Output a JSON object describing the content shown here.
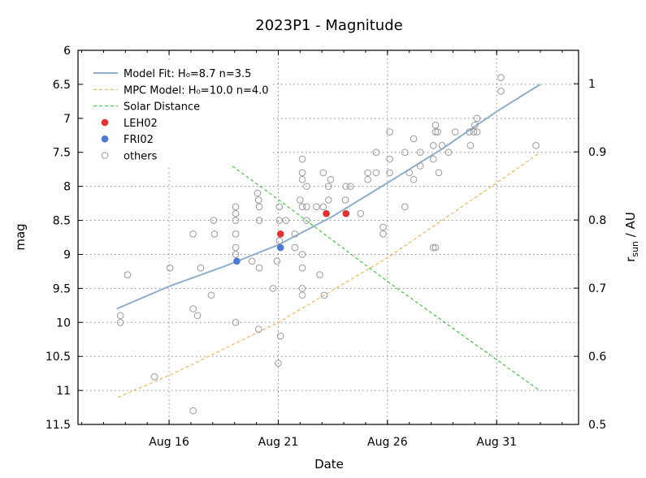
{
  "chart_data": {
    "type": "scatter",
    "title": "2023P1 - Magnitude",
    "xlabel": "Date",
    "ylabel": "mag",
    "ylabel_right": {
      "base": "r",
      "sub": "sun",
      "rest": " / AU"
    },
    "x_unit": "day of August 2023",
    "xlim": [
      11.83,
      34.75
    ],
    "ylim": [
      11.5,
      6
    ],
    "y_inverted": true,
    "ylim_right": [
      0.5,
      1.049
    ],
    "x_ticks": [
      {
        "value": 16,
        "label": "Aug 16"
      },
      {
        "value": 21,
        "label": "Aug 21"
      },
      {
        "value": 26,
        "label": "Aug 26"
      },
      {
        "value": 31,
        "label": "Aug 31"
      }
    ],
    "y_ticks": [
      "6",
      "6.5",
      "7",
      "7.5",
      "8",
      "8.5",
      "9",
      "9.5",
      "10",
      "10.5",
      "11",
      "11.5"
    ],
    "y_ticks_right": [
      "0.5",
      "0.6",
      "0.7",
      "0.8",
      "0.9",
      "1"
    ],
    "grid": true,
    "legend_placement": "top-left",
    "legend": [
      {
        "label": "Model Fit: H₀=8.7 n=3.5",
        "style": "line",
        "color": "#8eaecb"
      },
      {
        "label": "MPC Model: H₀=10.0 n=4.0",
        "style": "dashed",
        "color": "#e8a93a"
      },
      {
        "label": "Solar Distance",
        "style": "dashed",
        "color": "#22bb22"
      },
      {
        "label": "LEH02",
        "style": "dot",
        "color": "#e03030"
      },
      {
        "label": "FRI02",
        "style": "dot",
        "color": "#4c7bd6"
      },
      {
        "label": "others",
        "style": "circle",
        "color": "#999999"
      }
    ],
    "series": [
      {
        "name": "Model Fit: H₀=8.7 n=3.5",
        "kind": "line",
        "axis": "left",
        "points": [
          [
            13.6,
            9.8
          ],
          [
            16,
            9.47
          ],
          [
            18.5,
            9.18
          ],
          [
            21,
            8.86
          ],
          [
            23.5,
            8.44
          ],
          [
            26,
            7.95
          ],
          [
            28.5,
            7.45
          ],
          [
            31,
            6.9
          ],
          [
            33,
            6.5
          ]
        ]
      },
      {
        "name": "MPC Model: H₀=10.0 n=4.0",
        "kind": "dashed",
        "axis": "left",
        "points": [
          [
            13.66,
            11.1
          ],
          [
            16,
            10.78
          ],
          [
            21,
            10.0
          ],
          [
            26,
            9.05
          ],
          [
            31,
            7.95
          ],
          [
            33,
            7.5
          ]
        ]
      },
      {
        "name": "Solar Distance",
        "kind": "dashed",
        "axis": "right",
        "points": [
          [
            16.37,
            0.938
          ],
          [
            21,
            0.83
          ],
          [
            26,
            0.71
          ],
          [
            31,
            0.595
          ],
          [
            33,
            0.549
          ]
        ]
      },
      {
        "name": "LEH02",
        "kind": "dot",
        "axis": "left",
        "points": [
          [
            21.1,
            8.7
          ],
          [
            23.2,
            8.4
          ],
          [
            24.1,
            8.4
          ]
        ]
      },
      {
        "name": "FRI02",
        "kind": "dot",
        "axis": "left",
        "points": [
          [
            19.1,
            9.1
          ],
          [
            21.1,
            8.9
          ]
        ]
      },
      {
        "name": "others",
        "kind": "circle",
        "axis": "left",
        "points": [
          [
            14.1,
            9.3
          ],
          [
            13.77,
            9.9
          ],
          [
            13.77,
            10.0
          ],
          [
            15.33,
            10.8
          ],
          [
            16.04,
            9.2
          ],
          [
            17.1,
            8.7
          ],
          [
            17.1,
            9.8
          ],
          [
            17.3,
            9.9
          ],
          [
            17.1,
            11.3
          ],
          [
            17.45,
            9.2
          ],
          [
            17.93,
            9.6
          ],
          [
            18.04,
            8.5
          ],
          [
            18.08,
            8.7
          ],
          [
            19.05,
            8.3
          ],
          [
            19.05,
            8.4
          ],
          [
            19.05,
            8.5
          ],
          [
            19.05,
            8.7
          ],
          [
            19.05,
            8.9
          ],
          [
            19.05,
            9.0
          ],
          [
            19.05,
            10.0
          ],
          [
            19.8,
            9.1
          ],
          [
            20.05,
            8.1
          ],
          [
            20.1,
            8.2
          ],
          [
            20.13,
            8.3
          ],
          [
            20.13,
            8.5
          ],
          [
            20.13,
            9.2
          ],
          [
            20.1,
            10.1
          ],
          [
            20.76,
            9.5
          ],
          [
            20.94,
            9.1
          ],
          [
            21.05,
            8.3
          ],
          [
            21.05,
            8.5
          ],
          [
            21.05,
            8.8
          ],
          [
            21.1,
            10.2
          ],
          [
            21.0,
            10.6
          ],
          [
            21.35,
            8.5
          ],
          [
            21.76,
            8.7
          ],
          [
            21.76,
            8.9
          ],
          [
            22.0,
            8.2
          ],
          [
            22.1,
            7.6
          ],
          [
            22.1,
            7.8
          ],
          [
            22.1,
            7.9
          ],
          [
            22.3,
            8.0
          ],
          [
            22.1,
            8.3
          ],
          [
            22.3,
            8.3
          ],
          [
            22.1,
            9.0
          ],
          [
            22.1,
            9.2
          ],
          [
            22.1,
            9.5
          ],
          [
            22.1,
            9.6
          ],
          [
            22.3,
            8.5
          ],
          [
            22.75,
            8.3
          ],
          [
            22.9,
            9.3
          ],
          [
            23.06,
            7.8
          ],
          [
            23.1,
            9.6
          ],
          [
            23.06,
            8.3
          ],
          [
            23.3,
            8.2
          ],
          [
            23.3,
            8.0
          ],
          [
            23.4,
            7.9
          ],
          [
            24.1,
            8.0
          ],
          [
            24.3,
            8.0
          ],
          [
            24.07,
            8.2
          ],
          [
            24.77,
            8.4
          ],
          [
            25.1,
            7.8
          ],
          [
            25.1,
            7.9
          ],
          [
            25.48,
            7.5
          ],
          [
            25.48,
            7.8
          ],
          [
            25.8,
            8.6
          ],
          [
            25.8,
            8.7
          ],
          [
            26.1,
            7.2
          ],
          [
            26.1,
            7.6
          ],
          [
            26.1,
            7.8
          ],
          [
            26.8,
            7.5
          ],
          [
            26.8,
            8.3
          ],
          [
            27.0,
            7.8
          ],
          [
            27.2,
            7.3
          ],
          [
            27.2,
            7.9
          ],
          [
            27.5,
            7.5
          ],
          [
            27.5,
            7.7
          ],
          [
            28.1,
            7.6
          ],
          [
            28.1,
            7.4
          ],
          [
            28.2,
            7.2
          ],
          [
            28.2,
            7.1
          ],
          [
            28.3,
            7.2
          ],
          [
            28.2,
            8.9
          ],
          [
            28.1,
            8.9
          ],
          [
            28.35,
            7.8
          ],
          [
            28.5,
            7.4
          ],
          [
            28.8,
            7.5
          ],
          [
            29.1,
            7.2
          ],
          [
            29.75,
            7.2
          ],
          [
            29.8,
            7.4
          ],
          [
            30.0,
            7.1
          ],
          [
            30.1,
            7.0
          ],
          [
            30.1,
            7.2
          ],
          [
            29.95,
            7.2
          ],
          [
            31.2,
            6.4
          ],
          [
            31.2,
            6.6
          ],
          [
            32.8,
            7.4
          ]
        ]
      }
    ]
  }
}
